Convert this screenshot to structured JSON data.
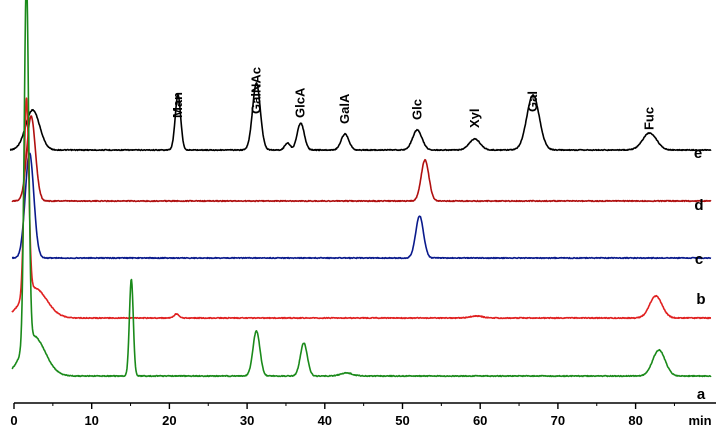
{
  "chart_data": {
    "type": "line",
    "title": "",
    "xlabel": "",
    "ylabel": "",
    "x_unit": "min",
    "xlim": [
      0,
      80
    ],
    "x_ticks": [
      0,
      10,
      20,
      30,
      40,
      50,
      60,
      70,
      80
    ],
    "grid": false,
    "legend": "none",
    "x_ranges_min": [
      0,
      85
    ],
    "peak_labels": [
      {
        "label": "Man",
        "x": 21.1
      },
      {
        "label": "GalNAc",
        "x": 31.2
      },
      {
        "label": "GlcA",
        "x": 36.9
      },
      {
        "label": "GalA",
        "x": 42.6
      },
      {
        "label": "Glc",
        "x": 51.9
      },
      {
        "label": "Xyl",
        "x": 59.3
      },
      {
        "label": "Gal",
        "x": 66.8
      },
      {
        "label": "Fuc",
        "x": 81.8
      }
    ],
    "series": [
      {
        "name": "e",
        "color": "#000000",
        "baseline_intensity": 0.0,
        "peaks": [
          {
            "x": 2.4,
            "height": 40,
            "width": 0.9
          },
          {
            "x": 21.1,
            "height": 55,
            "width": 0.35
          },
          {
            "x": 31.2,
            "height": 67,
            "width": 0.5
          },
          {
            "x": 35.2,
            "height": 7,
            "width": 0.35
          },
          {
            "x": 36.9,
            "height": 27,
            "width": 0.45
          },
          {
            "x": 42.6,
            "height": 16,
            "width": 0.5
          },
          {
            "x": 51.9,
            "height": 20,
            "width": 0.6
          },
          {
            "x": 59.3,
            "height": 11,
            "width": 0.7
          },
          {
            "x": 66.8,
            "height": 55,
            "width": 0.8
          },
          {
            "x": 81.8,
            "height": 17,
            "width": 0.9
          }
        ]
      },
      {
        "name": "d",
        "color": "#b01010",
        "baseline_intensity": 0.0,
        "peaks": [
          {
            "x": 2.2,
            "height": 85,
            "width": 0.55
          },
          {
            "x": 52.9,
            "height": 41,
            "width": 0.5
          }
        ]
      },
      {
        "name": "c",
        "color": "#0a1a8c",
        "baseline_intensity": 0.0,
        "peaks": [
          {
            "x": 2.0,
            "height": 105,
            "width": 0.55
          },
          {
            "x": 52.2,
            "height": 42,
            "width": 0.5
          }
        ]
      },
      {
        "name": "b",
        "color": "#e02020",
        "baseline_intensity": 0.0,
        "peaks": [
          {
            "x": 1.6,
            "height": 195,
            "width": 0.3
          },
          {
            "x": 2.6,
            "height": 30,
            "width": 1.6
          },
          {
            "x": 20.9,
            "height": 4,
            "width": 0.3
          },
          {
            "x": 59.5,
            "height": 2,
            "width": 0.8
          },
          {
            "x": 82.6,
            "height": 22,
            "width": 0.8
          }
        ]
      },
      {
        "name": "a",
        "color": "#1a8a1a",
        "baseline_intensity": 0.0,
        "peaks": [
          {
            "x": 1.6,
            "height": 366,
            "width": 0.28
          },
          {
            "x": 2.5,
            "height": 40,
            "width": 1.5
          },
          {
            "x": 15.1,
            "height": 97,
            "width": 0.25
          },
          {
            "x": 31.2,
            "height": 45,
            "width": 0.45
          },
          {
            "x": 37.3,
            "height": 33,
            "width": 0.45
          },
          {
            "x": 42.8,
            "height": 3,
            "width": 0.8
          },
          {
            "x": 83.0,
            "height": 26,
            "width": 0.8
          }
        ]
      }
    ]
  }
}
